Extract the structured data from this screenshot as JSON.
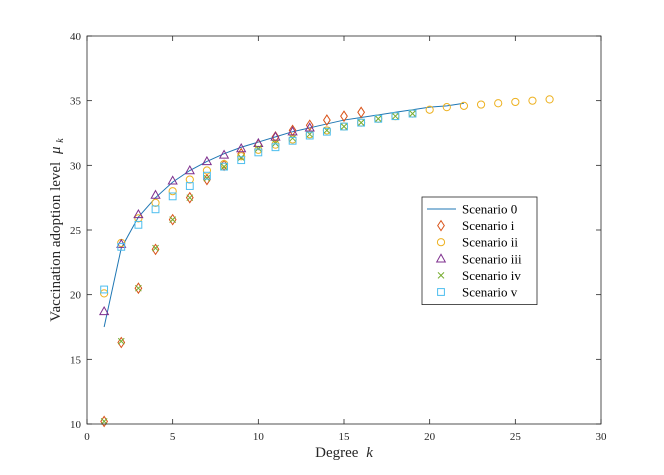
{
  "chart_data": {
    "type": "scatter",
    "xlabel": "Degree",
    "xlabel_var": "k",
    "ylabel": "Vaccination adoption level",
    "ylabel_var": "μ",
    "ylabel_sub": "k",
    "xlim": [
      0,
      30
    ],
    "ylim": [
      10,
      40
    ],
    "xticks": [
      0,
      5,
      10,
      15,
      20,
      25,
      30
    ],
    "yticks": [
      10,
      15,
      20,
      25,
      30,
      35,
      40
    ],
    "grid": false,
    "legend_position": "center-right",
    "series": [
      {
        "name": "Scenario 0",
        "marker": "line",
        "color": "#1f77b4",
        "x": [
          1,
          2,
          3,
          4,
          5,
          6,
          7,
          8,
          9,
          10,
          11,
          12,
          13,
          14,
          15,
          16,
          17,
          18,
          19,
          20,
          21,
          22
        ],
        "y": [
          17.5,
          23.6,
          26.0,
          27.5,
          28.7,
          29.6,
          30.3,
          30.9,
          31.4,
          31.8,
          32.2,
          32.6,
          32.9,
          33.2,
          33.5,
          33.7,
          33.9,
          34.1,
          34.3,
          34.5,
          34.6,
          34.8
        ]
      },
      {
        "name": "Scenario i",
        "marker": "diamond",
        "color": "#d95319",
        "x": [
          1,
          2,
          3,
          4,
          5,
          6,
          7,
          8,
          9,
          10,
          11,
          12,
          13,
          14,
          15,
          16
        ],
        "y": [
          10.2,
          16.3,
          20.5,
          23.5,
          25.8,
          27.5,
          28.9,
          30.0,
          30.9,
          31.6,
          32.2,
          32.7,
          33.1,
          33.5,
          33.8,
          34.1
        ]
      },
      {
        "name": "Scenario ii",
        "marker": "circle",
        "color": "#edb120",
        "x": [
          1,
          2,
          3,
          4,
          5,
          6,
          7,
          8,
          9,
          10,
          11,
          12,
          13,
          14,
          15,
          16,
          17,
          18,
          19,
          20,
          21,
          22,
          23,
          24,
          25,
          26,
          27
        ],
        "y": [
          20.1,
          24.0,
          25.9,
          27.1,
          28.0,
          28.9,
          29.6,
          30.1,
          30.7,
          31.2,
          31.6,
          32.0,
          32.4,
          32.7,
          33.0,
          33.3,
          33.6,
          33.8,
          34.0,
          34.3,
          34.5,
          34.6,
          34.7,
          34.8,
          34.9,
          35.0,
          35.1
        ]
      },
      {
        "name": "Scenario iii",
        "marker": "triangle",
        "color": "#7e2f8e",
        "x": [
          1,
          2,
          3,
          4,
          5,
          6,
          7,
          8,
          9,
          10,
          11,
          12,
          13
        ],
        "y": [
          18.7,
          23.9,
          26.2,
          27.7,
          28.8,
          29.6,
          30.3,
          30.8,
          31.3,
          31.7,
          32.2,
          32.6,
          32.9
        ]
      },
      {
        "name": "Scenario iv",
        "marker": "x",
        "color": "#77ac30",
        "x": [
          1,
          2,
          3,
          4,
          5,
          6,
          7,
          8,
          9,
          10,
          11,
          12,
          13,
          14,
          15,
          16,
          17,
          18,
          19
        ],
        "y": [
          10.2,
          16.4,
          20.5,
          23.6,
          25.8,
          27.5,
          29.0,
          29.9,
          30.6,
          31.3,
          31.7,
          32.1,
          32.4,
          32.7,
          33.0,
          33.3,
          33.6,
          33.8,
          34.0
        ]
      },
      {
        "name": "Scenario v",
        "marker": "square",
        "color": "#4dbeee",
        "x": [
          1,
          2,
          3,
          4,
          5,
          6,
          7,
          8,
          9,
          10,
          11,
          12,
          13,
          14,
          15,
          16,
          17,
          18,
          19
        ],
        "y": [
          20.4,
          23.7,
          25.4,
          26.6,
          27.6,
          28.4,
          29.2,
          29.9,
          30.4,
          31.0,
          31.4,
          31.9,
          32.3,
          32.6,
          33.0,
          33.3,
          33.6,
          33.8,
          34.0
        ]
      }
    ]
  }
}
